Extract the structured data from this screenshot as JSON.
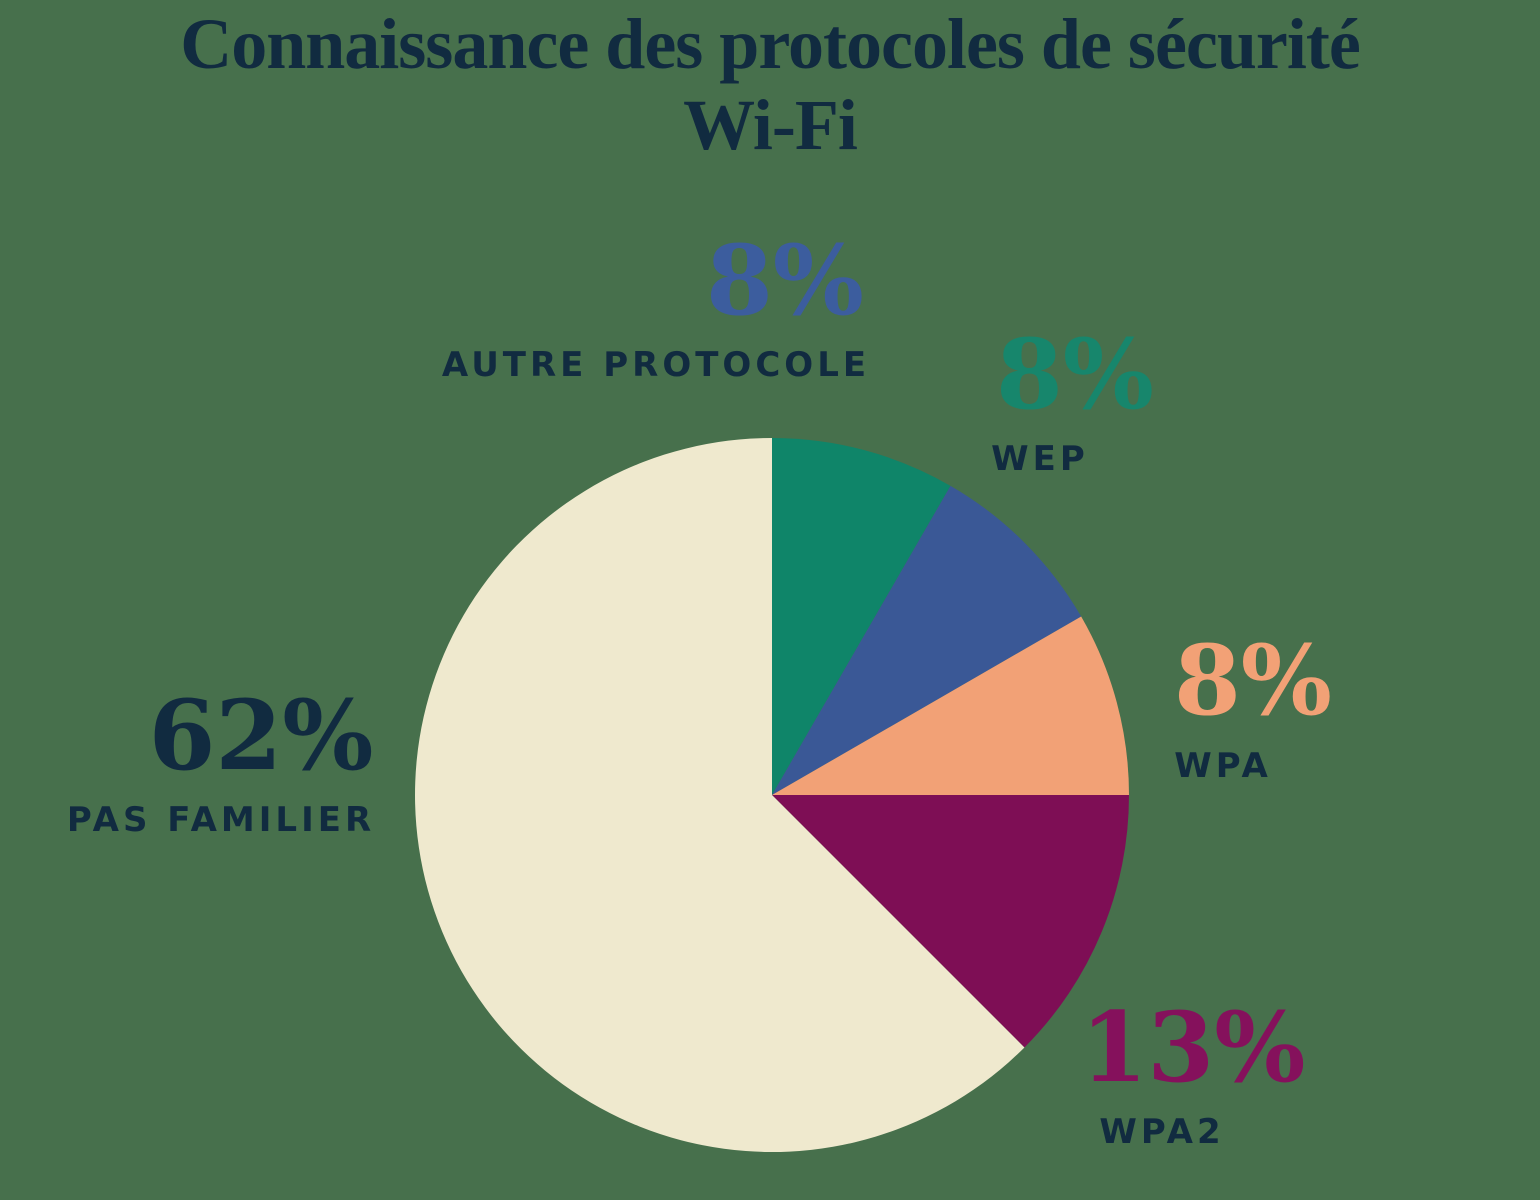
{
  "title": {
    "line1": "Connaissance des protocoles de sécurité",
    "line2": "Wi-Fi"
  },
  "palette": {
    "background": "#47704C",
    "text": "#112B40"
  },
  "chart_data": {
    "type": "pie",
    "title": "Connaissance des protocoles de sécurité Wi-Fi",
    "legend_position": "callouts-around-pie",
    "start_angle_deg": 0,
    "direction": "clockwise",
    "grid": false,
    "slices": [
      {
        "label": "WEP",
        "value": 8,
        "value_label": "8%",
        "angle_deg": 30,
        "color": "#0F8569",
        "value_color": "#17866C"
      },
      {
        "label": "AUTRE PROTOCOLE",
        "value": 8,
        "value_label": "8%",
        "angle_deg": 30,
        "color": "#3A5896",
        "value_color": "#3C5D9E"
      },
      {
        "label": "WPA",
        "value": 8,
        "value_label": "8%",
        "angle_deg": 30,
        "color": "#F2A176",
        "value_color": "#F2A176"
      },
      {
        "label": "WPA2",
        "value": 13,
        "value_label": "13%",
        "angle_deg": 45,
        "color": "#7E0E55",
        "value_color": "#85115C"
      },
      {
        "label": "PAS FAMILIER",
        "value": 62,
        "value_label": "62%",
        "angle_deg": 225,
        "color": "#EFE9CE",
        "value_color": "#112B40"
      }
    ]
  }
}
